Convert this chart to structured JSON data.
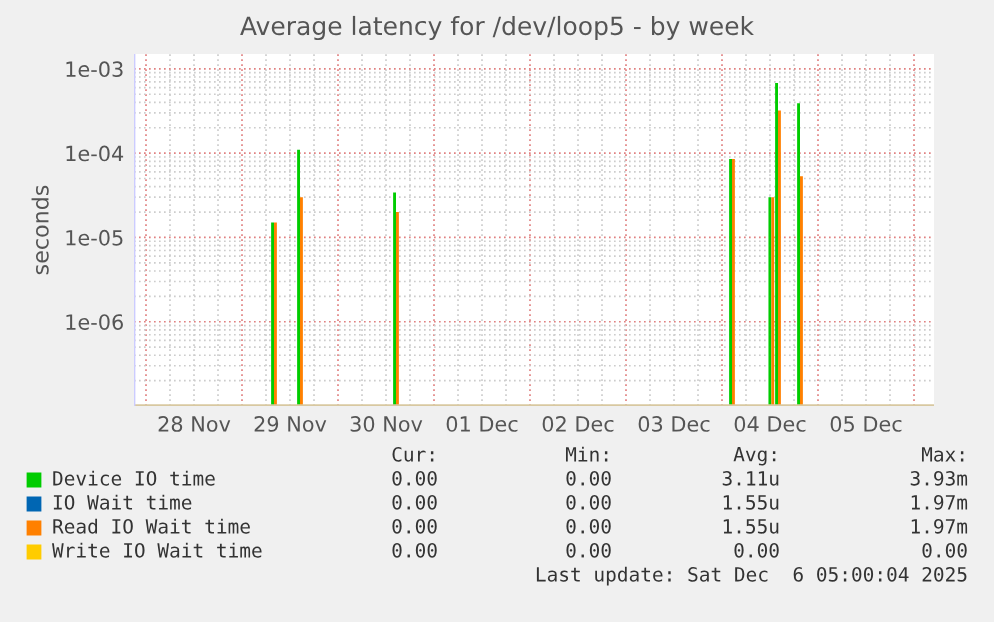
{
  "chart_data": {
    "type": "bar",
    "title": "Average latency for /dev/loop5 - by week",
    "ylabel": "seconds",
    "log": "y",
    "grid": true,
    "legend": "bottom",
    "xlim": [
      "2025-11-27T21:00",
      "2025-12-06T05:00"
    ],
    "xticks": [
      {
        "value": "2025-11-28T12:00",
        "label": "28 Nov"
      },
      {
        "value": "2025-11-29T12:00",
        "label": "29 Nov"
      },
      {
        "value": "2025-11-30T12:00",
        "label": "30 Nov"
      },
      {
        "value": "2025-12-01T12:00",
        "label": "01 Dec"
      },
      {
        "value": "2025-12-02T12:00",
        "label": "02 Dec"
      },
      {
        "value": "2025-12-03T12:00",
        "label": "03 Dec"
      },
      {
        "value": "2025-12-04T12:00",
        "label": "04 Dec"
      },
      {
        "value": "2025-12-05T12:00",
        "label": "05 Dec"
      }
    ],
    "ylim": [
      1e-07,
      0.0015
    ],
    "yticks": [
      {
        "value": 1e-06,
        "label": "1e-06"
      },
      {
        "value": 1e-05,
        "label": "1e-05"
      },
      {
        "value": 0.0001,
        "label": "1e-04"
      },
      {
        "value": 0.001,
        "label": "1e-03"
      }
    ],
    "series": [
      {
        "name": "Device IO time",
        "color": "#00cc00",
        "x": [
          "2025-11-29T08:00",
          "2025-11-29T14:30",
          "2025-11-30T14:30",
          "2025-12-04T02:30",
          "2025-12-04T12:20",
          "2025-12-04T14:00",
          "2025-12-04T19:30"
        ],
        "values": [
          1.5e-05,
          0.00011,
          3.4e-05,
          8.5e-05,
          3e-05,
          0.00068,
          0.00039
        ]
      },
      {
        "name": "IO Wait time",
        "color": "#0066b3"
      },
      {
        "name": "Read IO Wait time",
        "color": "#ff8000",
        "x": [
          "2025-11-29T08:00",
          "2025-11-29T14:30",
          "2025-11-30T14:30",
          "2025-12-04T02:30",
          "2025-12-04T12:20",
          "2025-12-04T14:00",
          "2025-12-04T19:30"
        ],
        "values": [
          1.5e-05,
          3e-05,
          2e-05,
          8.5e-05,
          3e-05,
          0.00032,
          5.3e-05
        ]
      },
      {
        "name": "Write IO Wait time",
        "color": "#ffcc00"
      }
    ],
    "annotations": [
      "Cur:",
      "Min:",
      "Avg:",
      "Max:",
      "0.00",
      "0.00",
      "3.11u",
      "3.93m",
      "0.00",
      "0.00",
      "1.55u",
      "1.97m",
      "0.00",
      "0.00",
      "1.55u",
      "1.97m",
      "0.00",
      "0.00",
      "0.00",
      "0.00",
      "Last update: Sat Dec  6 05:00:04 2025"
    ]
  }
}
